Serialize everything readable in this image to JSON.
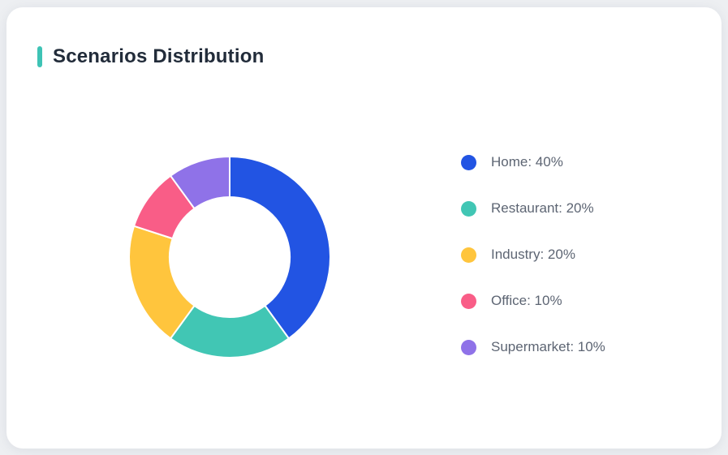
{
  "page": {
    "background": "#edeff2"
  },
  "card": {
    "title": "Scenarios Distribution",
    "accent_color": "#3ec3b5"
  },
  "chart_data": {
    "type": "pie",
    "subtype": "donut",
    "title": "Scenarios Distribution",
    "categories": [
      "Home",
      "Restaurant",
      "Industry",
      "Office",
      "Supermarket"
    ],
    "values": [
      40,
      20,
      20,
      10,
      10
    ],
    "unit": "%",
    "colors": [
      "#2254e3",
      "#41c6b4",
      "#ffc53d",
      "#f95d87",
      "#8f72e8"
    ],
    "start_angle": "top",
    "direction": "clockwise",
    "inner_radius_ratio": 0.6,
    "slice_gap_color": "#ffffff",
    "legend_position": "right",
    "legend": [
      {
        "label": "Home: 40%"
      },
      {
        "label": "Restaurant: 20%"
      },
      {
        "label": "Industry: 20%"
      },
      {
        "label": "Office: 10%"
      },
      {
        "label": "Supermarket: 10%"
      }
    ]
  }
}
